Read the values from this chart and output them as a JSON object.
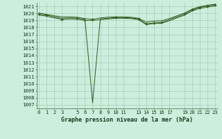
{
  "bg_color": "#cceedd",
  "grid_color": "#aaccbb",
  "line_color": "#2d5a1e",
  "marker_color": "#2d5a1e",
  "title": "Graphe pression niveau de la mer (hPa)",
  "ylim": [
    1006.5,
    1021.5
  ],
  "yticks": [
    1007,
    1008,
    1009,
    1010,
    1011,
    1012,
    1013,
    1014,
    1015,
    1016,
    1017,
    1018,
    1019,
    1020,
    1021
  ],
  "xlim": [
    -0.3,
    23.3
  ],
  "xticks": [
    0,
    1,
    2,
    3,
    5,
    6,
    7,
    8,
    9,
    10,
    11,
    13,
    14,
    15,
    16,
    17,
    19,
    20,
    21,
    22,
    23
  ],
  "series": [
    {
      "x": [
        0,
        1,
        2,
        3,
        4,
        5,
        6,
        7,
        8,
        9,
        10,
        11,
        12,
        13,
        14,
        15,
        16,
        17,
        18,
        19,
        20,
        21,
        22,
        23
      ],
      "y": [
        1019.9,
        1019.75,
        1019.5,
        1019.3,
        1019.35,
        1019.3,
        1019.15,
        1007.3,
        1019.2,
        1019.3,
        1019.4,
        1019.4,
        1019.35,
        1019.2,
        1018.5,
        1018.65,
        1018.7,
        1019.1,
        1019.5,
        1019.9,
        1020.5,
        1020.85,
        1021.05,
        1021.2
      ],
      "markers": [
        0,
        1,
        5,
        10,
        13,
        14,
        15,
        16,
        19,
        20,
        21,
        22,
        23
      ]
    },
    {
      "x": [
        0,
        1,
        2,
        3,
        4,
        5,
        6,
        7,
        8,
        9,
        10,
        11,
        12,
        13,
        14,
        15,
        16,
        17,
        18,
        19,
        20,
        21,
        22,
        23
      ],
      "y": [
        1020.05,
        1019.85,
        1019.65,
        1019.5,
        1019.5,
        1019.45,
        1019.25,
        1019.15,
        1019.35,
        1019.45,
        1019.5,
        1019.5,
        1019.45,
        1019.3,
        1018.75,
        1018.9,
        1018.95,
        1019.25,
        1019.65,
        1020.05,
        1020.6,
        1020.95,
        1021.15,
        1021.3
      ],
      "markers": [
        7
      ]
    },
    {
      "x": [
        0,
        1,
        2,
        3,
        4,
        5,
        6,
        7,
        8,
        9,
        10,
        11,
        12,
        13,
        14,
        15,
        16,
        17,
        18,
        19,
        20,
        21,
        22,
        23
      ],
      "y": [
        1019.75,
        1019.6,
        1019.35,
        1019.15,
        1019.2,
        1019.15,
        1019.0,
        1019.0,
        1019.1,
        1019.2,
        1019.3,
        1019.3,
        1019.25,
        1019.1,
        1018.4,
        1018.55,
        1018.6,
        1018.95,
        1019.35,
        1019.75,
        1020.35,
        1020.7,
        1020.9,
        1021.05
      ],
      "markers": [
        3,
        6
      ]
    }
  ],
  "title_fontsize": 6.0,
  "tick_fontsize": 5.2
}
